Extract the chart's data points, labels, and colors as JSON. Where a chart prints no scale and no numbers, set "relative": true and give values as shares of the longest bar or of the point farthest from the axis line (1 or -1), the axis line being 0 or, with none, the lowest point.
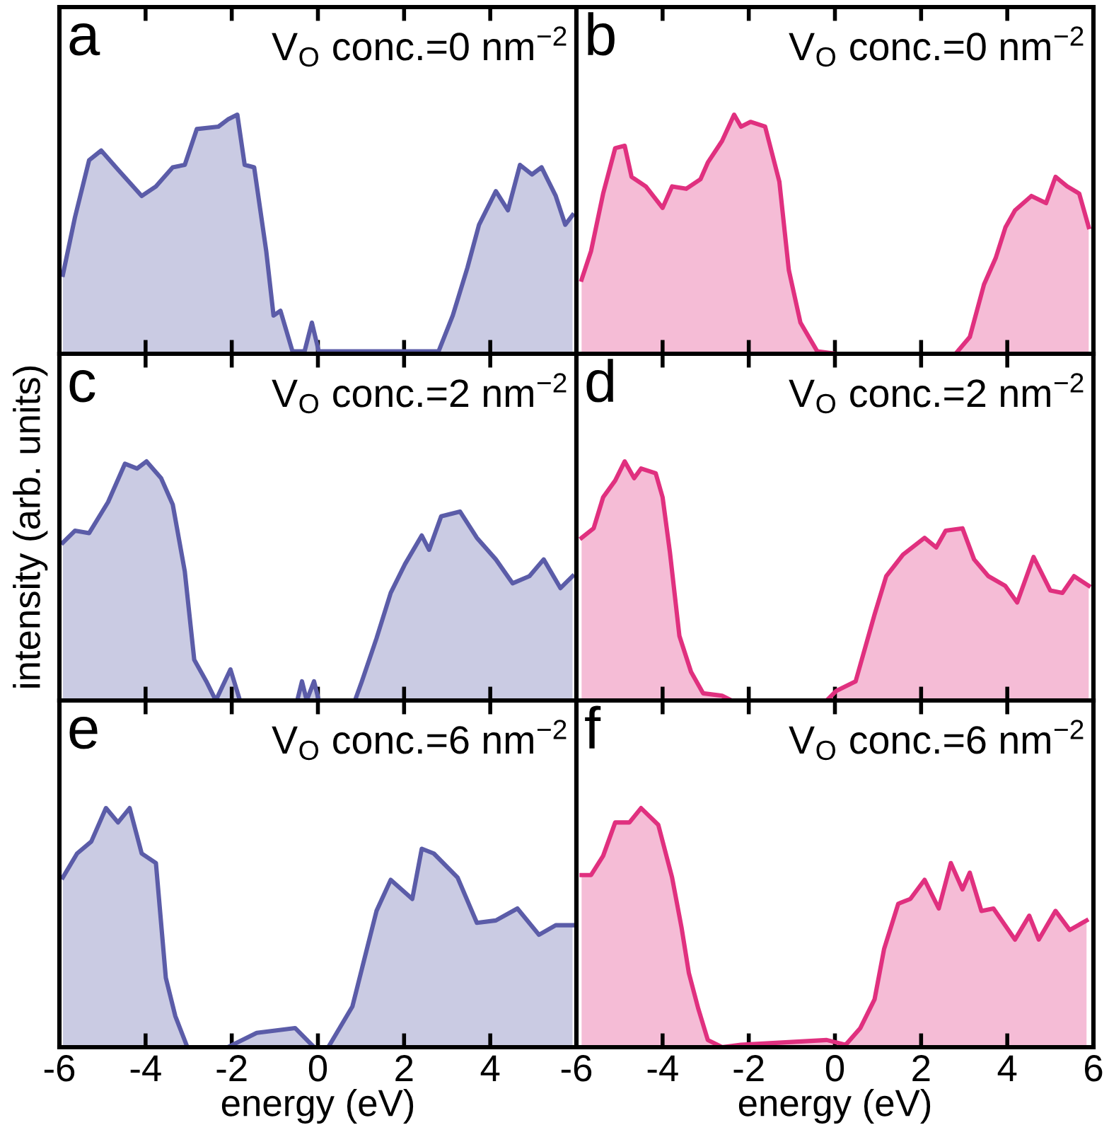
{
  "chart_data": [
    {
      "type": "area",
      "relative": true,
      "title": "a",
      "annotations": [
        "V$_{O}$ conc.=0 nm$^{−2}$"
      ],
      "xlim": [
        -6,
        6
      ],
      "xticks": [
        -6,
        -4,
        -2,
        0,
        2,
        4,
        6
      ],
      "tick_labels": false,
      "series": [
        {
          "color": "#5b5ca8",
          "x": [
            -5.92,
            -5.64,
            -5.31,
            -5.03,
            -4.64,
            -4.09,
            -3.76,
            -3.37,
            -3.09,
            -2.81,
            -2.31,
            -2.09,
            -1.87,
            -1.7,
            -1.48,
            -1.2,
            -1.03,
            -0.87,
            -0.59,
            -0.31,
            -0.14,
            0.02,
            2.8,
            3.13,
            3.47,
            3.74,
            4.13,
            4.41,
            4.69,
            4.97,
            5.19,
            5.52,
            5.74,
            5.91
          ],
          "values": [
            0.33,
            0.57,
            0.81,
            0.85,
            0.77,
            0.66,
            0.7,
            0.78,
            0.79,
            0.94,
            0.95,
            0.98,
            1.0,
            0.79,
            0.78,
            0.43,
            0.16,
            0.18,
            0.01,
            0.01,
            0.13,
            0.01,
            0.01,
            0.16,
            0.36,
            0.54,
            0.68,
            0.6,
            0.79,
            0.75,
            0.78,
            0.66,
            0.54,
            0.58
          ]
        }
      ]
    },
    {
      "type": "area",
      "relative": true,
      "title": "b",
      "annotations": [
        "V$_{O}$ conc.=0 nm$^{−2}$"
      ],
      "xlim": [
        -6,
        6
      ],
      "xticks": [
        -6,
        -4,
        -2,
        0,
        2,
        4,
        6
      ],
      "tick_labels": false,
      "series": [
        {
          "color": "#e0307f",
          "x": [
            -5.88,
            -5.66,
            -5.38,
            -5.1,
            -4.88,
            -4.72,
            -4.39,
            -4.0,
            -3.78,
            -3.45,
            -3.12,
            -2.95,
            -2.62,
            -2.34,
            -2.18,
            -1.96,
            -1.62,
            -1.29,
            -1.07,
            -0.8,
            -0.41,
            0.03,
            2.8,
            3.13,
            3.46,
            3.73,
            3.96,
            4.18,
            4.56,
            4.9,
            5.12,
            5.39,
            5.67,
            5.89
          ],
          "values": [
            0.31,
            0.43,
            0.67,
            0.86,
            0.87,
            0.74,
            0.7,
            0.61,
            0.7,
            0.69,
            0.73,
            0.8,
            0.89,
            1.0,
            0.95,
            0.97,
            0.95,
            0.72,
            0.35,
            0.13,
            0.01,
            0,
            0,
            0.07,
            0.29,
            0.4,
            0.53,
            0.6,
            0.66,
            0.63,
            0.74,
            0.7,
            0.67,
            0.53
          ]
        }
      ]
    },
    {
      "type": "area",
      "relative": true,
      "title": "c",
      "ylabel": "intensity (arb. units)",
      "annotations": [
        "V$_{O}$ conc.=2 nm$^{−2}$"
      ],
      "xlim": [
        -6,
        6
      ],
      "xticks": [
        -6,
        -4,
        -2,
        0,
        2,
        4,
        6
      ],
      "tick_labels": false,
      "series": [
        {
          "color": "#5b5ca8",
          "x": [
            -5.92,
            -5.64,
            -5.31,
            -4.87,
            -4.48,
            -4.2,
            -3.98,
            -3.64,
            -3.37,
            -3.09,
            -2.87,
            -2.59,
            -2.37,
            -2.03,
            -1.81,
            -0.48,
            -0.37,
            -0.26,
            -0.09,
            0.02,
            0.86,
            1.02,
            1.36,
            1.69,
            2.02,
            2.41,
            2.58,
            2.86,
            3.3,
            3.69,
            4.13,
            4.52,
            4.91,
            5.24,
            5.63,
            5.91
          ],
          "values": [
            0.66,
            0.71,
            0.7,
            0.83,
            0.99,
            0.97,
            1.0,
            0.93,
            0.82,
            0.54,
            0.17,
            0.08,
            0,
            0.13,
            0,
            0,
            0.08,
            0,
            0.08,
            0,
            0,
            0.08,
            0.26,
            0.45,
            0.57,
            0.69,
            0.63,
            0.77,
            0.79,
            0.68,
            0.59,
            0.49,
            0.52,
            0.59,
            0.47,
            0.52
          ]
        }
      ]
    },
    {
      "type": "area",
      "relative": true,
      "title": "d",
      "annotations": [
        "V$_{O}$ conc.=2 nm$^{−2}$"
      ],
      "xlim": [
        -6,
        6
      ],
      "xticks": [
        -6,
        -4,
        -2,
        0,
        2,
        4,
        6
      ],
      "tick_labels": false,
      "series": [
        {
          "color": "#e0307f",
          "x": [
            -5.88,
            -5.6,
            -5.38,
            -5.1,
            -4.88,
            -4.66,
            -4.5,
            -4.16,
            -4.0,
            -3.83,
            -3.61,
            -3.34,
            -3.06,
            -2.62,
            -2.4,
            -0.19,
            0.03,
            0.48,
            0.92,
            1.19,
            1.58,
            2.08,
            2.35,
            2.57,
            2.96,
            3.23,
            3.56,
            3.95,
            4.23,
            4.61,
            5.0,
            5.28,
            5.55,
            5.89
          ],
          "values": [
            0.68,
            0.72,
            0.85,
            0.92,
            1.0,
            0.93,
            0.97,
            0.95,
            0.85,
            0.62,
            0.27,
            0.12,
            0.03,
            0.02,
            0,
            0,
            0.04,
            0.08,
            0.36,
            0.52,
            0.61,
            0.68,
            0.64,
            0.71,
            0.72,
            0.59,
            0.52,
            0.48,
            0.41,
            0.6,
            0.46,
            0.45,
            0.52,
            0.48
          ]
        }
      ]
    },
    {
      "type": "area",
      "relative": true,
      "title": "e",
      "xlabel": "energy (eV)",
      "annotations": [
        "V$_{O}$ conc.=6 nm$^{−2}$"
      ],
      "xlim": [
        -6,
        6
      ],
      "xticks": [
        -6,
        -4,
        -2,
        0,
        2,
        4,
        {
          "value": 6,
          "label": null
        }
      ],
      "tick_labels": "x",
      "series": [
        {
          "color": "#5b5ca8",
          "x": [
            -5.92,
            -5.59,
            -5.26,
            -4.92,
            -4.64,
            -4.37,
            -4.09,
            -3.76,
            -3.53,
            -3.31,
            -3.03,
            -2.09,
            -1.42,
            -0.53,
            -0.09,
            0.24,
            0.8,
            1.36,
            1.69,
            2.19,
            2.41,
            2.69,
            3.24,
            3.69,
            4.13,
            4.63,
            5.13,
            5.52,
            5.91
          ],
          "values": [
            0.71,
            0.81,
            0.86,
            1.0,
            0.94,
            1.0,
            0.81,
            0.77,
            0.29,
            0.13,
            0,
            0,
            0.06,
            0.08,
            0,
            0,
            0.17,
            0.57,
            0.7,
            0.62,
            0.83,
            0.81,
            0.71,
            0.52,
            0.53,
            0.58,
            0.47,
            0.51,
            0.51
          ]
        }
      ]
    },
    {
      "type": "area",
      "relative": true,
      "title": "f",
      "xlabel": "energy (eV)",
      "annotations": [
        "V$_{O}$ conc.=6 nm$^{−2}$"
      ],
      "xlim": [
        -6,
        6
      ],
      "xticks": [
        -6,
        -4,
        -2,
        0,
        2,
        4,
        6
      ],
      "tick_labels": "x",
      "series": [
        {
          "color": "#e0307f",
          "x": [
            -5.88,
            -5.66,
            -5.38,
            -5.1,
            -4.77,
            -4.5,
            -4.1,
            -3.78,
            -3.56,
            -3.39,
            -3.17,
            -2.95,
            -2.62,
            -2.18,
            -0.19,
            0.25,
            0.59,
            0.92,
            1.14,
            1.47,
            1.75,
            2.08,
            2.41,
            2.69,
            2.96,
            3.13,
            3.4,
            3.68,
            4.18,
            4.51,
            4.73,
            5.12,
            5.45,
            5.84
          ],
          "values": [
            0.72,
            0.72,
            0.8,
            0.94,
            0.94,
            1.0,
            0.93,
            0.71,
            0.5,
            0.31,
            0.16,
            0.03,
            0,
            0.01,
            0.03,
            0.01,
            0.08,
            0.2,
            0.41,
            0.6,
            0.62,
            0.7,
            0.58,
            0.77,
            0.66,
            0.73,
            0.57,
            0.58,
            0.45,
            0.55,
            0.45,
            0.57,
            0.49,
            0.53
          ]
        }
      ]
    }
  ]
}
